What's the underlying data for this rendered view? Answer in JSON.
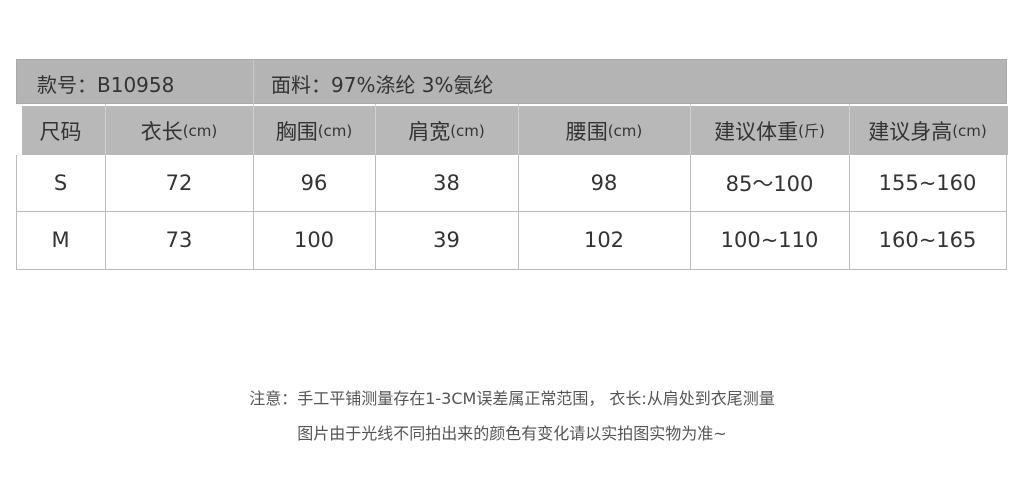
{
  "info": {
    "style_no": "款号：B10958",
    "fabric": "面料：97%涤纶 3%氨纶"
  },
  "headers": [
    {
      "label": "尺码",
      "unit": ""
    },
    {
      "label": "衣长",
      "unit": "(cm)"
    },
    {
      "label": "胸围",
      "unit": "(cm)"
    },
    {
      "label": "肩宽",
      "unit": "(cm)"
    },
    {
      "label": "腰围",
      "unit": "(cm)"
    },
    {
      "label": "建议体重",
      "unit": "(斤)"
    },
    {
      "label": "建议身高",
      "unit": "(cm)"
    }
  ],
  "rows": [
    [
      "S",
      "72",
      "96",
      "38",
      "98",
      "85～100",
      "155~160"
    ],
    [
      "M",
      "73",
      "100",
      "39",
      "102",
      "100~110",
      "160~165"
    ]
  ],
  "notes": [
    "注意：手工平铺测量存在1-3CM误差属正常范围， 衣长:从肩处到衣尾测量",
    "图片由于光线不同拍出来的颜色有变化请以实拍图实物为准~"
  ]
}
